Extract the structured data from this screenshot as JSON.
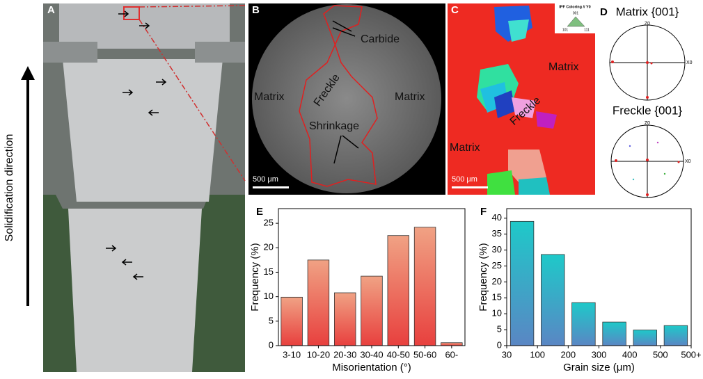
{
  "panel_labels": [
    "A",
    "B",
    "C",
    "D",
    "E",
    "F"
  ],
  "side_label": "Solidification direction",
  "micrograph": {
    "labels": [
      "Carbide",
      "Matrix",
      "Freckle",
      "Matrix",
      "Shrinkage"
    ],
    "scale_bar": "500 μm"
  },
  "ebsd": {
    "labels": [
      "Matrix",
      "Freckle",
      "Matrix"
    ],
    "scale_bar": "500 μm",
    "legend_title": "IPF Coloring // Y0",
    "legend_corners": [
      "001",
      "101",
      "111"
    ]
  },
  "pole_figures": [
    {
      "title": "Matrix {001}",
      "axes": [
        "Z0",
        "X0"
      ]
    },
    {
      "title": "Freckle {001}",
      "axes": [
        "Z0",
        "X0"
      ]
    }
  ],
  "chart_data": [
    {
      "type": "bar",
      "xlabel": "Misorientation (°)",
      "ylabel": "Frequency (%)",
      "categories": [
        "3-10",
        "10-20",
        "20-30",
        "30-40",
        "40-50",
        "50-60",
        "60-"
      ],
      "values": [
        9.9,
        17.5,
        10.8,
        14.2,
        22.5,
        24.2,
        0.6
      ],
      "gradient": [
        "#f0a284",
        "#e8403e"
      ],
      "ylim": [
        0,
        28
      ],
      "yticks": [
        0,
        5,
        10,
        15,
        20,
        25
      ]
    },
    {
      "type": "histogram",
      "xlabel": "Grain size (μm)",
      "ylabel": "Frequency (%)",
      "bins": [
        "30",
        "100",
        "200",
        "300",
        "400",
        "500",
        "500+"
      ],
      "values": [
        39,
        28.6,
        13.5,
        7.4,
        4.9,
        6.3
      ],
      "gradient": [
        "#1ec9c9",
        "#5a86c4"
      ],
      "ylim": [
        0,
        43
      ],
      "yticks": [
        0,
        5,
        10,
        15,
        20,
        25,
        30,
        35,
        40
      ]
    }
  ]
}
